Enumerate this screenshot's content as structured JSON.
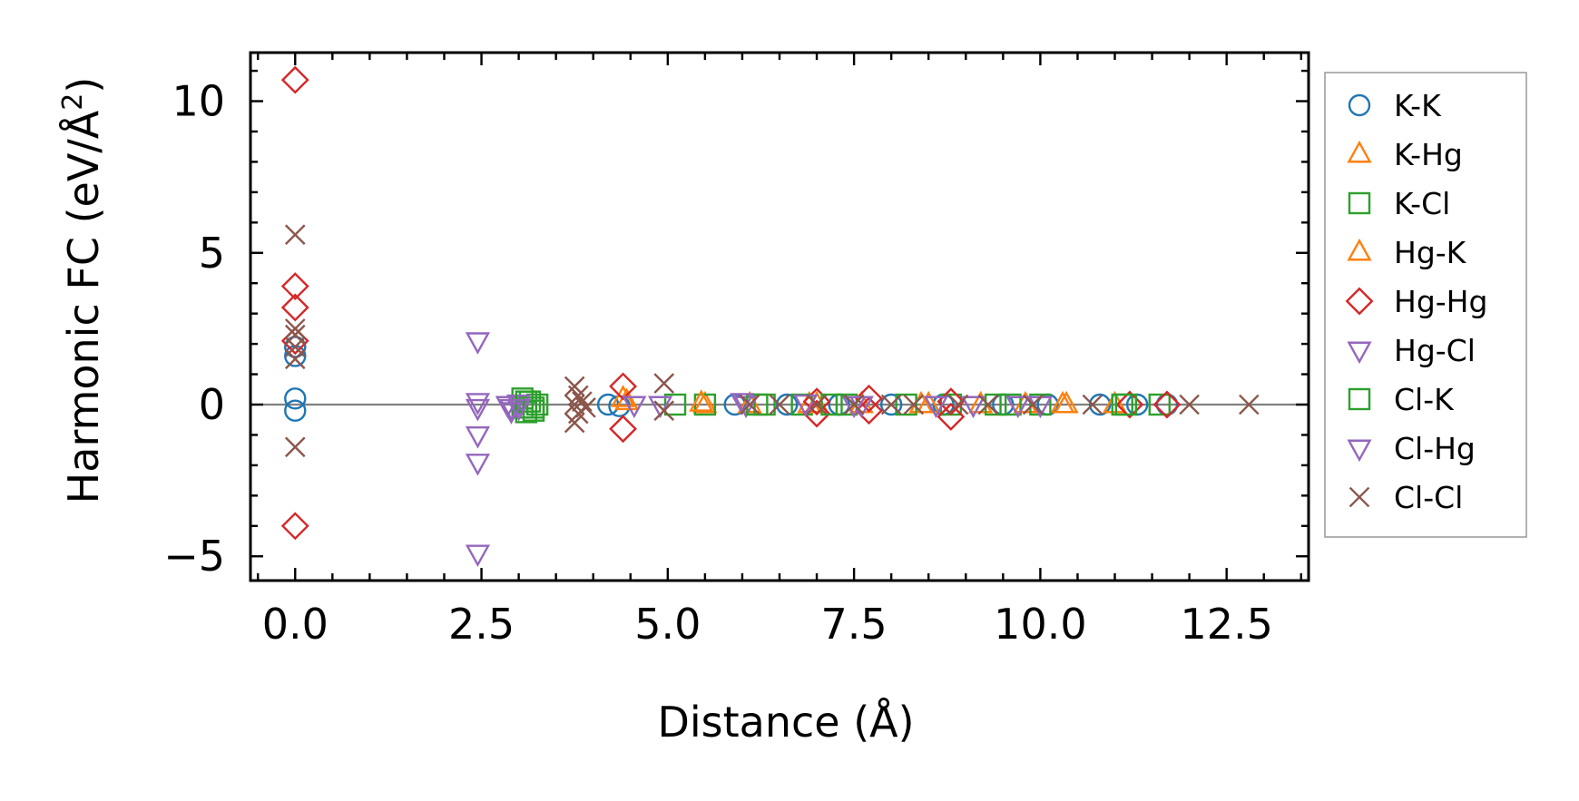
{
  "chart_data": {
    "type": "scatter",
    "xlabel": "Distance (Å)",
    "ylabel_main": "Harmonic FC (eV/Å",
    "ylabel_sup": "2",
    "ylabel_close": ")",
    "xlim": [
      -0.6,
      13.6
    ],
    "ylim": [
      -5.8,
      11.6
    ],
    "xticks": [
      0.0,
      2.5,
      5.0,
      7.5,
      10.0,
      12.5
    ],
    "xtick_labels": [
      "0.0",
      "2.5",
      "5.0",
      "7.5",
      "10.0",
      "12.5"
    ],
    "yticks": [
      -5,
      0,
      5,
      10
    ],
    "ytick_labels": [
      "−5",
      "0",
      "5",
      "10"
    ],
    "zero_line": true,
    "grid": false,
    "legend_position": "right, outside",
    "series": [
      {
        "name": "K-K",
        "marker": "circle",
        "color": "#1f77b4",
        "points": [
          [
            0,
            1.6
          ],
          [
            0,
            1.9
          ],
          [
            0,
            0.2
          ],
          [
            0,
            -0.2
          ],
          [
            4.2,
            0
          ],
          [
            4.35,
            -0.05
          ],
          [
            5.9,
            0
          ],
          [
            6.6,
            0
          ],
          [
            7.3,
            0
          ],
          [
            8.0,
            0
          ],
          [
            8.7,
            0
          ],
          [
            9.5,
            0
          ],
          [
            10.1,
            0
          ],
          [
            10.8,
            0
          ],
          [
            11.3,
            0
          ],
          [
            11.7,
            0
          ]
        ]
      },
      {
        "name": "K-Hg",
        "marker": "triangle-up",
        "color": "#ff7f0e",
        "points": [
          [
            4.4,
            0.2
          ],
          [
            5.5,
            0
          ],
          [
            6.1,
            0
          ],
          [
            6.9,
            0
          ],
          [
            7.6,
            0
          ],
          [
            8.4,
            0
          ],
          [
            9.2,
            0
          ],
          [
            9.8,
            0
          ],
          [
            10.3,
            0
          ],
          [
            11.0,
            0
          ]
        ]
      },
      {
        "name": "K-Cl",
        "marker": "square",
        "color": "#2ca02c",
        "points": [
          [
            3.05,
            0.2
          ],
          [
            3.1,
            -0.25
          ],
          [
            3.15,
            0.1
          ],
          [
            3.2,
            -0.1
          ],
          [
            3.25,
            0
          ],
          [
            3.05,
            -0.1
          ],
          [
            5.1,
            0
          ],
          [
            5.5,
            0
          ],
          [
            6.3,
            0
          ],
          [
            6.8,
            0
          ],
          [
            7.4,
            0
          ],
          [
            8.2,
            0
          ],
          [
            8.8,
            0
          ],
          [
            9.4,
            0
          ],
          [
            10.0,
            0
          ],
          [
            11.1,
            0
          ],
          [
            11.6,
            0
          ]
        ]
      },
      {
        "name": "Hg-K",
        "marker": "triangle-up",
        "color": "#ff7f0e",
        "points": [
          [
            4.45,
            0.1
          ],
          [
            5.45,
            0.05
          ],
          [
            7.0,
            0
          ],
          [
            8.5,
            0
          ],
          [
            10.35,
            0
          ]
        ]
      },
      {
        "name": "Hg-Hg",
        "marker": "diamond",
        "color": "#d62728",
        "points": [
          [
            0,
            10.7
          ],
          [
            0,
            3.9
          ],
          [
            0,
            3.2
          ],
          [
            0,
            2.1
          ],
          [
            0,
            -4.0
          ],
          [
            4.4,
            0.6
          ],
          [
            4.4,
            -0.8
          ],
          [
            7.0,
            0.1
          ],
          [
            7.0,
            -0.3
          ],
          [
            7.7,
            0.2
          ],
          [
            7.7,
            -0.2
          ],
          [
            8.8,
            0.1
          ],
          [
            8.8,
            -0.4
          ],
          [
            11.2,
            0
          ],
          [
            11.7,
            0
          ]
        ]
      },
      {
        "name": "Hg-Cl",
        "marker": "triangle-down",
        "color": "#9467bd",
        "points": [
          [
            2.45,
            2.1
          ],
          [
            2.45,
            0.1
          ],
          [
            2.45,
            -0.1
          ],
          [
            2.45,
            -1.0
          ],
          [
            2.45,
            -1.9
          ],
          [
            2.45,
            -4.9
          ],
          [
            2.85,
            0
          ],
          [
            2.9,
            -0.1
          ],
          [
            3.0,
            0.05
          ],
          [
            4.55,
            0
          ],
          [
            4.9,
            0
          ],
          [
            6.05,
            0
          ],
          [
            6.85,
            0.05
          ],
          [
            7.5,
            0
          ],
          [
            8.6,
            0
          ],
          [
            9.1,
            0
          ],
          [
            10.0,
            0
          ]
        ]
      },
      {
        "name": "Cl-K",
        "marker": "square",
        "color": "#2ca02c",
        "points": [
          [
            3.1,
            0.1
          ],
          [
            3.2,
            -0.2
          ],
          [
            6.2,
            0
          ],
          [
            7.2,
            0
          ],
          [
            9.6,
            0
          ],
          [
            11.15,
            0
          ]
        ]
      },
      {
        "name": "Cl-Hg",
        "marker": "triangle-down",
        "color": "#9467bd",
        "points": [
          [
            2.9,
            -0.2
          ],
          [
            3.0,
            -0.1
          ],
          [
            6.0,
            0.1
          ],
          [
            7.6,
            0
          ],
          [
            9.7,
            0
          ]
        ]
      },
      {
        "name": "Cl-Cl",
        "marker": "x",
        "color": "#8c564b",
        "points": [
          [
            0,
            5.6
          ],
          [
            0,
            2.5
          ],
          [
            0,
            2.3
          ],
          [
            0,
            1.9
          ],
          [
            0,
            1.5
          ],
          [
            0,
            -1.4
          ],
          [
            3.75,
            0.6
          ],
          [
            3.75,
            -0.6
          ],
          [
            3.8,
            0.3
          ],
          [
            3.8,
            -0.3
          ],
          [
            3.85,
            0.1
          ],
          [
            3.9,
            -0.1
          ],
          [
            3.75,
            0
          ],
          [
            4.95,
            0.7
          ],
          [
            4.95,
            -0.2
          ],
          [
            6.1,
            0
          ],
          [
            6.5,
            0
          ],
          [
            7.0,
            0
          ],
          [
            7.5,
            0
          ],
          [
            8.0,
            0
          ],
          [
            8.3,
            0
          ],
          [
            8.9,
            0
          ],
          [
            9.3,
            0
          ],
          [
            9.9,
            0
          ],
          [
            10.7,
            0
          ],
          [
            12.0,
            0
          ],
          [
            12.8,
            0
          ]
        ]
      }
    ]
  }
}
